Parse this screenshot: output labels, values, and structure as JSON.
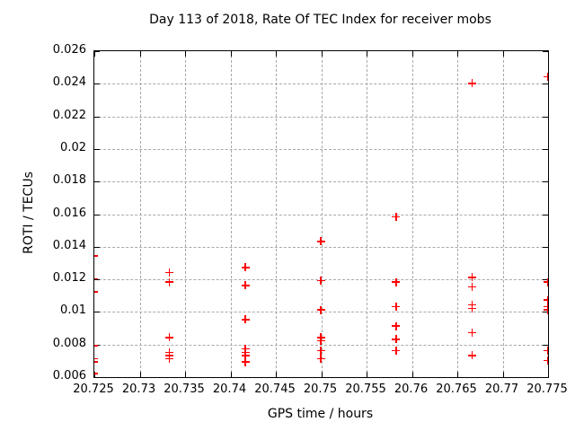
{
  "chart_data": {
    "type": "scatter",
    "title": "Day 113 of 2018, Rate Of TEC Index for receiver mobs",
    "xlabel": "GPS time / hours",
    "ylabel": "ROTI / TECUs",
    "xlim": [
      20.725,
      20.775
    ],
    "ylim": [
      0.006,
      0.026
    ],
    "xticks": [
      "20.725",
      "20.73",
      "20.735",
      "20.74",
      "20.745",
      "20.75",
      "20.755",
      "20.76",
      "20.765",
      "20.77",
      "20.775"
    ],
    "yticks": [
      "0.006",
      "0.008",
      "0.01",
      "0.012",
      "0.014",
      "0.016",
      "0.018",
      "0.02",
      "0.022",
      "0.024",
      "0.026"
    ],
    "grid": true,
    "legend": "none",
    "marker": {
      "shape": "plus",
      "color": "#ff0000",
      "size": 9
    },
    "series": [
      {
        "name": "ROTI",
        "points": [
          [
            20.725,
            0.0134
          ],
          [
            20.725,
            0.012
          ],
          [
            20.725,
            0.0112
          ],
          [
            20.725,
            0.0079
          ],
          [
            20.725,
            0.0071
          ],
          [
            20.725,
            0.0069
          ],
          [
            20.725,
            0.0062
          ],
          [
            20.7333,
            0.0124
          ],
          [
            20.7333,
            0.0118
          ],
          [
            20.7333,
            0.0084
          ],
          [
            20.7333,
            0.0075
          ],
          [
            20.7333,
            0.0073
          ],
          [
            20.7333,
            0.0071
          ],
          [
            20.7417,
            0.0127
          ],
          [
            20.7417,
            0.0116
          ],
          [
            20.7417,
            0.0095
          ],
          [
            20.7417,
            0.0077
          ],
          [
            20.7417,
            0.0075
          ],
          [
            20.7417,
            0.0073
          ],
          [
            20.7417,
            0.0069
          ],
          [
            20.75,
            0.0143
          ],
          [
            20.75,
            0.0119
          ],
          [
            20.75,
            0.0101
          ],
          [
            20.75,
            0.0084
          ],
          [
            20.75,
            0.0082
          ],
          [
            20.75,
            0.0076
          ],
          [
            20.75,
            0.0071
          ],
          [
            20.7583,
            0.0158
          ],
          [
            20.7583,
            0.0118
          ],
          [
            20.7583,
            0.0103
          ],
          [
            20.7583,
            0.0091
          ],
          [
            20.7583,
            0.0083
          ],
          [
            20.7583,
            0.0076
          ],
          [
            20.7667,
            0.024
          ],
          [
            20.7667,
            0.0121
          ],
          [
            20.7667,
            0.0115
          ],
          [
            20.7667,
            0.0104
          ],
          [
            20.7667,
            0.0102
          ],
          [
            20.7667,
            0.0087
          ],
          [
            20.7667,
            0.0073
          ],
          [
            20.775,
            0.0244
          ],
          [
            20.775,
            0.0118
          ],
          [
            20.775,
            0.0107
          ],
          [
            20.775,
            0.0103
          ],
          [
            20.775,
            0.0101
          ],
          [
            20.775,
            0.0076
          ],
          [
            20.775,
            0.007
          ]
        ]
      }
    ]
  },
  "colors": {
    "marker": "#ff0000",
    "grid": "#a9a9a9",
    "border": "#000000",
    "background": "#ffffff",
    "text": "#000000"
  }
}
